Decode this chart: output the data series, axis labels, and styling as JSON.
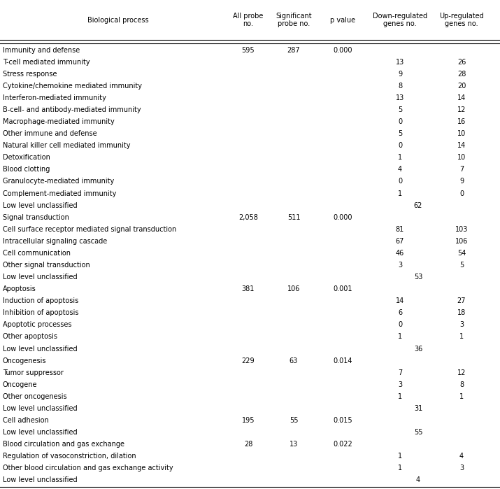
{
  "col_headers": [
    "Biological process",
    "All probe\nno.",
    "Significant\nprobe no.",
    "p value",
    "Down-regulated\ngenes no.",
    "Up-regulated\ngenes no."
  ],
  "rows": [
    {
      "label": "Immunity and defense",
      "indent": false,
      "all": "595",
      "sig": "287",
      "p": "0.000",
      "down": "",
      "up": "",
      "unclass": ""
    },
    {
      "label": "T-cell mediated immunity",
      "indent": true,
      "all": "",
      "sig": "",
      "p": "",
      "down": "13",
      "up": "26",
      "unclass": ""
    },
    {
      "label": "Stress response",
      "indent": true,
      "all": "",
      "sig": "",
      "p": "",
      "down": "9",
      "up": "28",
      "unclass": ""
    },
    {
      "label": "Cytokine/chemokine mediated immunity",
      "indent": true,
      "all": "",
      "sig": "",
      "p": "",
      "down": "8",
      "up": "20",
      "unclass": ""
    },
    {
      "label": "Interferon-mediated immunity",
      "indent": true,
      "all": "",
      "sig": "",
      "p": "",
      "down": "13",
      "up": "14",
      "unclass": ""
    },
    {
      "label": "B-cell- and antibody-mediated immunity",
      "indent": true,
      "all": "",
      "sig": "",
      "p": "",
      "down": "5",
      "up": "12",
      "unclass": ""
    },
    {
      "label": "Macrophage-mediated immunity",
      "indent": true,
      "all": "",
      "sig": "",
      "p": "",
      "down": "0",
      "up": "16",
      "unclass": ""
    },
    {
      "label": "Other immune and defense",
      "indent": true,
      "all": "",
      "sig": "",
      "p": "",
      "down": "5",
      "up": "10",
      "unclass": ""
    },
    {
      "label": "Natural killer cell mediated immunity",
      "indent": true,
      "all": "",
      "sig": "",
      "p": "",
      "down": "0",
      "up": "14",
      "unclass": ""
    },
    {
      "label": "Detoxification",
      "indent": true,
      "all": "",
      "sig": "",
      "p": "",
      "down": "1",
      "up": "10",
      "unclass": ""
    },
    {
      "label": "Blood clotting",
      "indent": true,
      "all": "",
      "sig": "",
      "p": "",
      "down": "4",
      "up": "7",
      "unclass": ""
    },
    {
      "label": "Granulocyte-mediated immunity",
      "indent": true,
      "all": "",
      "sig": "",
      "p": "",
      "down": "0",
      "up": "9",
      "unclass": ""
    },
    {
      "label": "Complement-mediated immunity",
      "indent": true,
      "all": "",
      "sig": "",
      "p": "",
      "down": "1",
      "up": "0",
      "unclass": ""
    },
    {
      "label": "Low level unclassified",
      "indent": true,
      "all": "",
      "sig": "",
      "p": "",
      "down": "",
      "up": "",
      "unclass": "62"
    },
    {
      "label": "Signal transduction",
      "indent": false,
      "all": "2,058",
      "sig": "511",
      "p": "0.000",
      "down": "",
      "up": "",
      "unclass": ""
    },
    {
      "label": "Cell surface receptor mediated signal transduction",
      "indent": true,
      "all": "",
      "sig": "",
      "p": "",
      "down": "81",
      "up": "103",
      "unclass": ""
    },
    {
      "label": "Intracellular signaling cascade",
      "indent": true,
      "all": "",
      "sig": "",
      "p": "",
      "down": "67",
      "up": "106",
      "unclass": ""
    },
    {
      "label": "Cell communication",
      "indent": true,
      "all": "",
      "sig": "",
      "p": "",
      "down": "46",
      "up": "54",
      "unclass": ""
    },
    {
      "label": "Other signal transduction",
      "indent": true,
      "all": "",
      "sig": "",
      "p": "",
      "down": "3",
      "up": "5",
      "unclass": ""
    },
    {
      "label": "Low level unclassified",
      "indent": true,
      "all": "",
      "sig": "",
      "p": "",
      "down": "",
      "up": "",
      "unclass": "53"
    },
    {
      "label": "Apoptosis",
      "indent": false,
      "all": "381",
      "sig": "106",
      "p": "0.001",
      "down": "",
      "up": "",
      "unclass": ""
    },
    {
      "label": "Induction of apoptosis",
      "indent": true,
      "all": "",
      "sig": "",
      "p": "",
      "down": "14",
      "up": "27",
      "unclass": ""
    },
    {
      "label": "Inhibition of apoptosis",
      "indent": true,
      "all": "",
      "sig": "",
      "p": "",
      "down": "6",
      "up": "18",
      "unclass": ""
    },
    {
      "label": "Apoptotic processes",
      "indent": true,
      "all": "",
      "sig": "",
      "p": "",
      "down": "0",
      "up": "3",
      "unclass": ""
    },
    {
      "label": "Other apoptosis",
      "indent": true,
      "all": "",
      "sig": "",
      "p": "",
      "down": "1",
      "up": "1",
      "unclass": ""
    },
    {
      "label": "Low level unclassified",
      "indent": true,
      "all": "",
      "sig": "",
      "p": "",
      "down": "",
      "up": "",
      "unclass": "36"
    },
    {
      "label": "Oncogenesis",
      "indent": false,
      "all": "229",
      "sig": "63",
      "p": "0.014",
      "down": "",
      "up": "",
      "unclass": ""
    },
    {
      "label": "Tumor suppressor",
      "indent": true,
      "all": "",
      "sig": "",
      "p": "",
      "down": "7",
      "up": "12",
      "unclass": ""
    },
    {
      "label": "Oncogene",
      "indent": true,
      "all": "",
      "sig": "",
      "p": "",
      "down": "3",
      "up": "8",
      "unclass": ""
    },
    {
      "label": "Other oncogenesis",
      "indent": true,
      "all": "",
      "sig": "",
      "p": "",
      "down": "1",
      "up": "1",
      "unclass": ""
    },
    {
      "label": "Low level unclassified",
      "indent": true,
      "all": "",
      "sig": "",
      "p": "",
      "down": "",
      "up": "",
      "unclass": "31"
    },
    {
      "label": "Cell adhesion",
      "indent": false,
      "all": "195",
      "sig": "55",
      "p": "0.015",
      "down": "",
      "up": "",
      "unclass": ""
    },
    {
      "label": "Low level unclassified",
      "indent": true,
      "all": "",
      "sig": "",
      "p": "",
      "down": "",
      "up": "",
      "unclass": "55"
    },
    {
      "label": "Blood circulation and gas exchange",
      "indent": false,
      "all": "28",
      "sig": "13",
      "p": "0.022",
      "down": "",
      "up": "",
      "unclass": ""
    },
    {
      "label": "Regulation of vasoconstriction, dilation",
      "indent": true,
      "all": "",
      "sig": "",
      "p": "",
      "down": "1",
      "up": "4",
      "unclass": ""
    },
    {
      "label": "Other blood circulation and gas exchange activity",
      "indent": true,
      "all": "",
      "sig": "",
      "p": "",
      "down": "1",
      "up": "3",
      "unclass": ""
    },
    {
      "label": "Low level unclassified",
      "indent": true,
      "all": "",
      "sig": "",
      "p": "",
      "down": "",
      "up": "",
      "unclass": "4"
    }
  ],
  "bg_color": "#ffffff",
  "text_color": "#000000",
  "font_size": 7.0,
  "header_font_size": 7.0
}
